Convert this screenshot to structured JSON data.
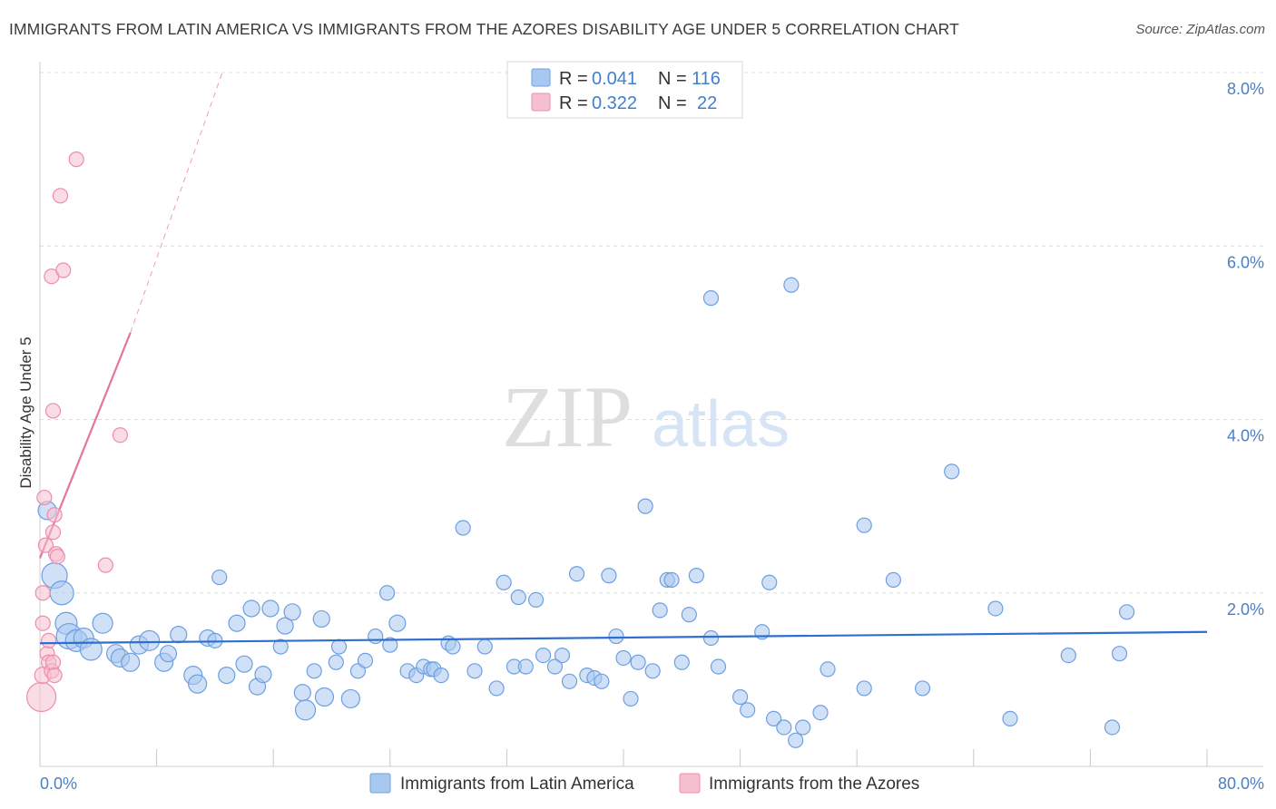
{
  "title": "IMMIGRANTS FROM LATIN AMERICA VS IMMIGRANTS FROM THE AZORES DISABILITY AGE UNDER 5 CORRELATION CHART",
  "source": "Source: ZipAtlas.com",
  "watermark": {
    "zip": "ZIP",
    "atlas": "atlas"
  },
  "colors": {
    "blue_fill": "#a9c8f0",
    "blue_stroke": "#6d9fe0",
    "blue_line": "#2f6fd0",
    "pink_fill": "#f6bfd0",
    "pink_stroke": "#ee8cab",
    "pink_line": "#e8739a",
    "grid": "#dcdcdc",
    "tick_text": "#4a7fc4"
  },
  "legend": {
    "rows": [
      {
        "r_label": "R =",
        "r_value": "0.041",
        "n_label": "N =",
        "n_value": "116",
        "color": "blue"
      },
      {
        "r_label": "R =",
        "r_value": "0.322",
        "n_label": "N =",
        "n_value": "22",
        "color": "pink"
      }
    ]
  },
  "chart_data": {
    "type": "scatter",
    "title": "IMMIGRANTS FROM LATIN AMERICA VS IMMIGRANTS FROM THE AZORES DISABILITY AGE UNDER 5 CORRELATION CHART",
    "xlabel": "",
    "ylabel": "Disability Age Under 5",
    "xlim": [
      0,
      80
    ],
    "ylim": [
      0,
      8.0
    ],
    "x_tick_labels": [
      "0.0%",
      "80.0%"
    ],
    "y_ticks": [
      2.0,
      4.0,
      6.0,
      8.0
    ],
    "y_tick_labels": [
      "2.0%",
      "4.0%",
      "6.0%",
      "8.0%"
    ],
    "grid": true,
    "legend_position": "top-center",
    "series": [
      {
        "name": "Immigrants from Latin America",
        "color": "blue",
        "trend": {
          "x": [
            0,
            80
          ],
          "y": [
            1.42,
            1.55
          ],
          "style": "solid"
        },
        "points": [
          [
            0.5,
            2.95,
            10
          ],
          [
            1.0,
            2.2,
            14
          ],
          [
            1.5,
            2.0,
            13
          ],
          [
            1.8,
            1.65,
            12
          ],
          [
            2.0,
            1.5,
            14
          ],
          [
            2.5,
            1.45,
            12
          ],
          [
            3.0,
            1.48,
            11
          ],
          [
            3.5,
            1.35,
            12
          ],
          [
            4.3,
            1.65,
            11
          ],
          [
            5.2,
            1.3,
            10
          ],
          [
            5.5,
            1.25,
            10
          ],
          [
            6.2,
            1.2,
            10
          ],
          [
            6.8,
            1.4,
            10
          ],
          [
            7.5,
            1.45,
            11
          ],
          [
            8.5,
            1.2,
            10
          ],
          [
            8.8,
            1.3,
            9
          ],
          [
            9.5,
            1.52,
            9
          ],
          [
            10.5,
            1.05,
            10
          ],
          [
            10.8,
            0.95,
            10
          ],
          [
            11.5,
            1.48,
            9
          ],
          [
            12.0,
            1.45,
            8
          ],
          [
            12.3,
            2.18,
            8
          ],
          [
            12.8,
            1.05,
            9
          ],
          [
            13.5,
            1.65,
            9
          ],
          [
            14.0,
            1.18,
            9
          ],
          [
            14.5,
            1.82,
            9
          ],
          [
            14.9,
            0.92,
            9
          ],
          [
            15.3,
            1.06,
            9
          ],
          [
            15.8,
            1.82,
            9
          ],
          [
            16.5,
            1.38,
            8
          ],
          [
            16.8,
            1.62,
            9
          ],
          [
            17.3,
            1.78,
            9
          ],
          [
            18.0,
            0.85,
            9
          ],
          [
            18.2,
            0.65,
            11
          ],
          [
            18.8,
            1.1,
            8
          ],
          [
            19.3,
            1.7,
            9
          ],
          [
            19.5,
            0.8,
            10
          ],
          [
            20.3,
            1.2,
            8
          ],
          [
            20.5,
            1.38,
            8
          ],
          [
            21.3,
            0.78,
            10
          ],
          [
            21.8,
            1.1,
            8
          ],
          [
            22.3,
            1.22,
            8
          ],
          [
            23.0,
            1.5,
            8
          ],
          [
            23.8,
            2.0,
            8
          ],
          [
            24.0,
            1.4,
            8
          ],
          [
            24.5,
            1.65,
            9
          ],
          [
            25.2,
            1.1,
            8
          ],
          [
            25.8,
            1.05,
            8
          ],
          [
            26.3,
            1.15,
            8
          ],
          [
            26.8,
            1.12,
            8
          ],
          [
            27.0,
            1.12,
            8
          ],
          [
            27.5,
            1.05,
            8
          ],
          [
            28.0,
            1.42,
            8
          ],
          [
            28.3,
            1.38,
            8
          ],
          [
            29.8,
            1.1,
            8
          ],
          [
            29.0,
            2.75,
            8
          ],
          [
            30.5,
            1.38,
            8
          ],
          [
            31.3,
            0.9,
            8
          ],
          [
            31.8,
            2.12,
            8
          ],
          [
            32.5,
            1.15,
            8
          ],
          [
            32.8,
            1.95,
            8
          ],
          [
            33.3,
            1.15,
            8
          ],
          [
            34.0,
            1.92,
            8
          ],
          [
            34.5,
            1.28,
            8
          ],
          [
            35.3,
            1.15,
            8
          ],
          [
            35.8,
            1.28,
            8
          ],
          [
            36.3,
            0.98,
            8
          ],
          [
            36.8,
            2.22,
            8
          ],
          [
            37.5,
            1.05,
            8
          ],
          [
            38.0,
            1.02,
            8
          ],
          [
            38.5,
            0.98,
            8
          ],
          [
            39.0,
            2.2,
            8
          ],
          [
            39.5,
            1.5,
            8
          ],
          [
            40.0,
            1.25,
            8
          ],
          [
            40.5,
            0.78,
            8
          ],
          [
            41.0,
            1.2,
            8
          ],
          [
            41.5,
            3.0,
            8
          ],
          [
            42.0,
            1.1,
            8
          ],
          [
            42.5,
            1.8,
            8
          ],
          [
            43.0,
            2.15,
            8
          ],
          [
            43.3,
            2.15,
            8
          ],
          [
            44.0,
            1.2,
            8
          ],
          [
            44.5,
            1.75,
            8
          ],
          [
            45.0,
            2.2,
            8
          ],
          [
            46.0,
            1.48,
            8
          ],
          [
            46.5,
            1.15,
            8
          ],
          [
            46.0,
            5.4,
            8
          ],
          [
            48.0,
            0.8,
            8
          ],
          [
            48.5,
            0.65,
            8
          ],
          [
            49.5,
            1.55,
            8
          ],
          [
            50.0,
            2.12,
            8
          ],
          [
            50.3,
            0.55,
            8
          ],
          [
            51.0,
            0.45,
            8
          ],
          [
            51.5,
            5.55,
            8
          ],
          [
            51.8,
            0.3,
            8
          ],
          [
            52.3,
            0.45,
            8
          ],
          [
            53.5,
            0.62,
            8
          ],
          [
            54.0,
            1.12,
            8
          ],
          [
            56.5,
            0.9,
            8
          ],
          [
            56.5,
            2.78,
            8
          ],
          [
            58.5,
            2.15,
            8
          ],
          [
            60.5,
            0.9,
            8
          ],
          [
            62.5,
            3.4,
            8
          ],
          [
            65.5,
            1.82,
            8
          ],
          [
            66.5,
            0.55,
            8
          ],
          [
            70.5,
            1.28,
            8
          ],
          [
            73.5,
            0.45,
            8
          ],
          [
            74.0,
            1.3,
            8
          ],
          [
            74.5,
            1.78,
            8
          ]
        ]
      },
      {
        "name": "Immigrants from the Azores",
        "color": "pink",
        "trend": {
          "x": [
            0,
            6.2
          ],
          "y": [
            2.4,
            5.0
          ],
          "style": "solid",
          "extension": {
            "x": [
              6.2,
              12.5
            ],
            "y": [
              5.0,
              8.0
            ],
            "style": "dashed"
          }
        },
        "points": [
          [
            0.1,
            0.8,
            16
          ],
          [
            0.2,
            1.05,
            9
          ],
          [
            0.2,
            1.65,
            8
          ],
          [
            0.2,
            2.0,
            8
          ],
          [
            0.3,
            3.1,
            8
          ],
          [
            0.4,
            2.55,
            8
          ],
          [
            0.5,
            1.3,
            8
          ],
          [
            0.6,
            1.2,
            8
          ],
          [
            0.6,
            1.45,
            8
          ],
          [
            0.8,
            5.65,
            8
          ],
          [
            0.8,
            1.1,
            8
          ],
          [
            0.9,
            1.2,
            8
          ],
          [
            0.9,
            2.7,
            8
          ],
          [
            0.9,
            4.1,
            8
          ],
          [
            1.0,
            2.9,
            8
          ],
          [
            1.0,
            1.05,
            8
          ],
          [
            1.1,
            2.45,
            8
          ],
          [
            1.2,
            2.42,
            8
          ],
          [
            1.4,
            6.58,
            8
          ],
          [
            1.6,
            5.72,
            8
          ],
          [
            2.5,
            7.0,
            8
          ],
          [
            4.5,
            2.32,
            8
          ],
          [
            5.5,
            3.82,
            8
          ]
        ]
      }
    ]
  },
  "bottom_legend": [
    {
      "label": "Immigrants from Latin America",
      "color": "blue"
    },
    {
      "label": "Immigrants from the Azores",
      "color": "pink"
    }
  ]
}
